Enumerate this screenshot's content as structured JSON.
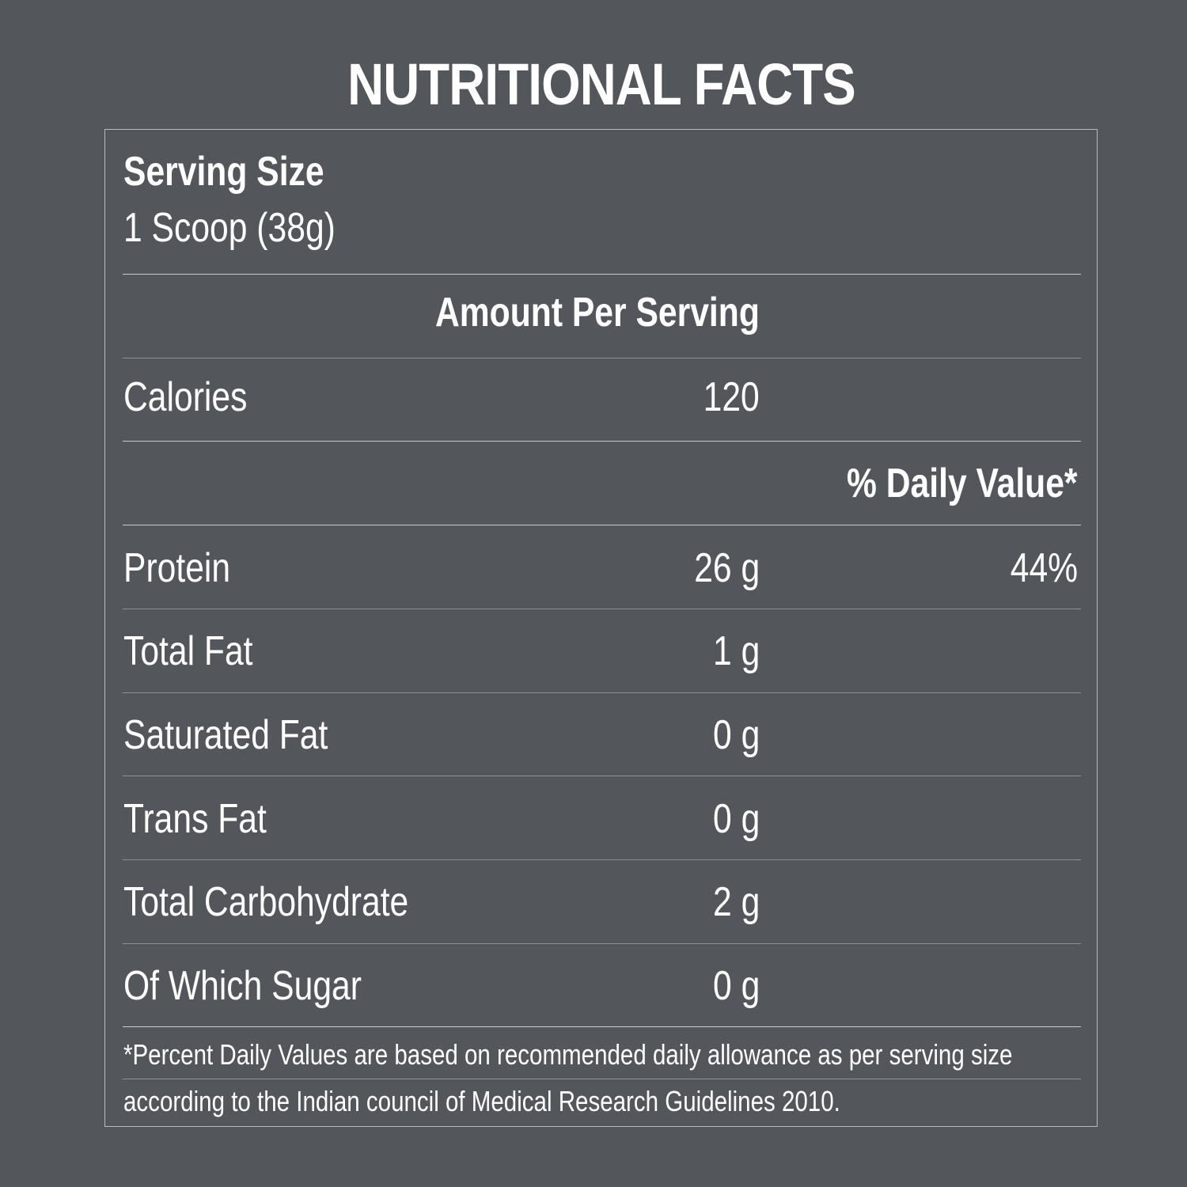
{
  "title": "NUTRITIONAL FACTS",
  "serving": {
    "label": "Serving Size",
    "value": "1 Scoop (38g)"
  },
  "amount_per_serving": "Amount Per Serving",
  "calories": {
    "label": "Calories",
    "value": "120"
  },
  "daily_value_header": "% Daily Value*",
  "nutrients": [
    {
      "label": "Protein",
      "amount": "26 g",
      "dv": "44%"
    },
    {
      "label": "Total Fat",
      "amount": "1 g",
      "dv": ""
    },
    {
      "label": "Saturated Fat",
      "amount": "0 g",
      "dv": ""
    },
    {
      "label": "Trans Fat",
      "amount": "0 g",
      "dv": ""
    },
    {
      "label": "Total Carbohydrate",
      "amount": "2 g",
      "dv": ""
    },
    {
      "label": "Of Which Sugar",
      "amount": "0 g",
      "dv": ""
    }
  ],
  "footnote": {
    "line1": "*Percent Daily Values are based on recommended daily allowance as per serving size",
    "line2": "according to the Indian council of Medical Research Guidelines 2010."
  },
  "colors": {
    "background": "#53565a",
    "text": "#ffffff",
    "rule": "#c9cbcd"
  }
}
